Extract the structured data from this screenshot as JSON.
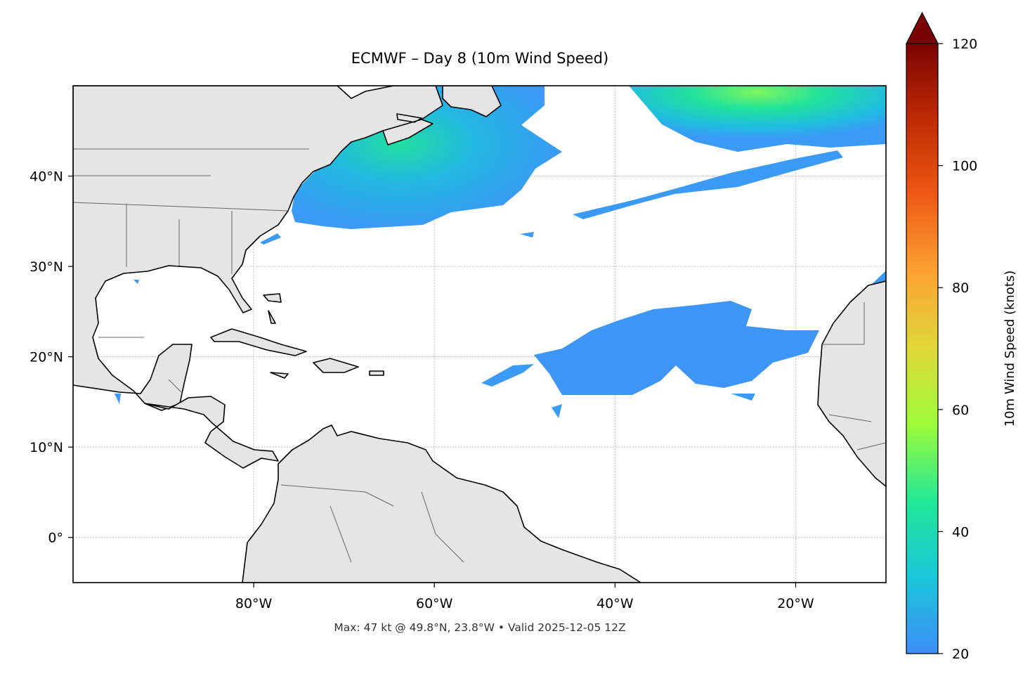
{
  "chart_data": {
    "type": "map",
    "title": "ECMWF – Day 8 (10m Wind Speed)",
    "note": "Max: 47 kt @ 49.8°N, 23.8°W • Valid 2025-12-05 12Z",
    "xlim": [
      -100,
      -10
    ],
    "ylim": [
      -5,
      50
    ],
    "xticks": [
      {
        "value": -80,
        "label": "80°W"
      },
      {
        "value": -60,
        "label": "60°W"
      },
      {
        "value": -40,
        "label": "40°W"
      },
      {
        "value": -20,
        "label": "20°W"
      }
    ],
    "yticks": [
      {
        "value": 0,
        "label": "0°"
      },
      {
        "value": 10,
        "label": "10°N"
      },
      {
        "value": 20,
        "label": "20°N"
      },
      {
        "value": 30,
        "label": "30°N"
      },
      {
        "value": 40,
        "label": "40°N"
      }
    ],
    "grid": true,
    "colorbar": {
      "label": "10m Wind Speed (knots)",
      "lim": [
        20,
        120
      ],
      "ticks": [
        20,
        40,
        60,
        80,
        100,
        120
      ],
      "colormap": [
        "#3e8ef7",
        "#1ac7d9",
        "#22e897",
        "#9dfb3a",
        "#dfd83a",
        "#fca333",
        "#ee5a15",
        "#c12a04",
        "#7a0403"
      ],
      "extend": "max"
    }
  }
}
